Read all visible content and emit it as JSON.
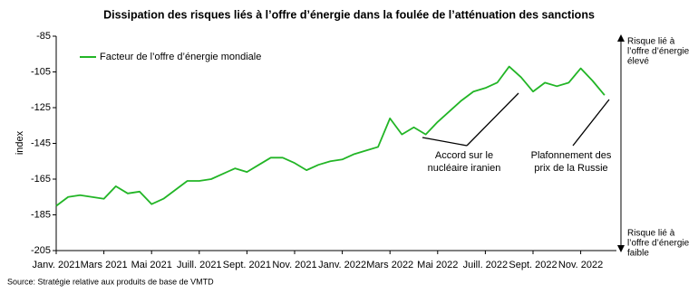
{
  "chart_data": {
    "type": "line",
    "title": "Dissipation des risques liés à l’offre d’énergie dans la foulée de l’atténuation des sanctions",
    "y_label": "index",
    "source": "Source: Stratégie relative aux produits de base de VMTD",
    "categories": [
      "Janv. 2021",
      null,
      null,
      null,
      "Mars 2021",
      null,
      null,
      null,
      "Mai 2021",
      null,
      null,
      null,
      "Juill. 2021",
      null,
      null,
      null,
      "Sept. 2021",
      null,
      null,
      null,
      "Nov. 2021",
      null,
      null,
      null,
      "Janv. 2022",
      null,
      null,
      null,
      "Mars 2022",
      null,
      null,
      null,
      "Mai 2022",
      null,
      null,
      null,
      "Juill. 2022",
      null,
      null,
      null,
      "Sept. 2022",
      null,
      null,
      null,
      "Nov. 2022",
      null,
      null
    ],
    "series": [
      {
        "name": "Facteur de l’offre d’énergie mondiale",
        "color": "#22b526",
        "values": [
          -180,
          -175,
          -174,
          -175,
          -176,
          -169,
          -173,
          -172,
          -179,
          -176,
          -171,
          -166,
          -166,
          -165,
          -162,
          -159,
          -161,
          -157,
          -153,
          -153,
          -156,
          -160,
          -157,
          -155,
          -154,
          -151,
          -149,
          -147,
          -131,
          -140,
          -136,
          -140,
          -133,
          -127,
          -121,
          -116,
          -114,
          -111,
          -102,
          -108,
          -116,
          -111,
          -113,
          -111,
          -103,
          -110,
          -118
        ]
      }
    ],
    "ylim": [
      -205,
      -85
    ],
    "yticks": [
      -85,
      -105,
      -125,
      -145,
      -165,
      -185,
      -205
    ],
    "annotations": [
      [
        "Accord sur le",
        "nucléaire iranien"
      ],
      [
        "Plafonnement des",
        "prix de la Russie"
      ]
    ],
    "right_labels": [
      [
        "Risque lié à",
        "l’offre d’énergie",
        "élevé"
      ],
      [
        "Risque lié à",
        "l’offre d’énergie",
        "faible"
      ]
    ]
  }
}
